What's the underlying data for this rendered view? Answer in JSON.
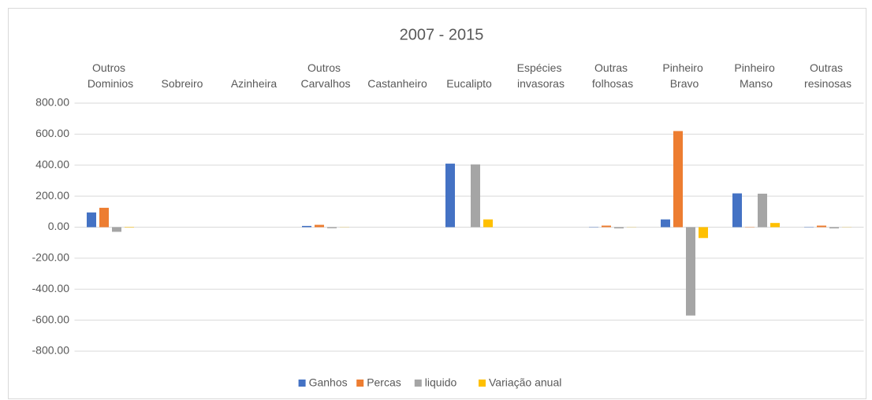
{
  "chart_data": {
    "type": "bar",
    "title": "2007 - 2015",
    "categories": [
      "Outros Dominios",
      "Sobreiro",
      "Azinheira",
      "Outros Carvalhos",
      "Castanheiro",
      "Eucalipto",
      "Espécies invasoras",
      "Outras folhosas",
      "Pinheiro Bravo",
      "Pinheiro Manso",
      "Outras resinosas"
    ],
    "series": [
      {
        "name": "Ganhos",
        "color": "#4472c4",
        "values": [
          95,
          0,
          0,
          8,
          0,
          410,
          0,
          2,
          50,
          218,
          2
        ]
      },
      {
        "name": "Percas",
        "color": "#ed7d31",
        "values": [
          125,
          0,
          0,
          15,
          0,
          0,
          0,
          10,
          620,
          2,
          10
        ]
      },
      {
        "name": "liquido",
        "color": "#a5a5a5",
        "values": [
          -30,
          0,
          0,
          -7,
          0,
          405,
          0,
          -8,
          -570,
          216,
          -8
        ]
      },
      {
        "name": "Variação anual",
        "color": "#ffc000",
        "values": [
          -3,
          0,
          0,
          -1,
          0,
          50,
          0,
          -1,
          -70,
          27,
          -1
        ]
      }
    ],
    "ylim": [
      -800,
      800
    ],
    "yticks": [
      {
        "value": -800,
        "label": "-800.00"
      },
      {
        "value": -600,
        "label": "-600.00"
      },
      {
        "value": -400,
        "label": "-400.00"
      },
      {
        "value": -200,
        "label": "-200.00"
      },
      {
        "value": 0,
        "label": "0.00"
      },
      {
        "value": 200,
        "label": "200.00"
      },
      {
        "value": 400,
        "label": "400.00"
      },
      {
        "value": 600,
        "label": "600.00"
      },
      {
        "value": 800,
        "label": "800.00"
      }
    ],
    "grid": true,
    "legend": "bottom"
  }
}
